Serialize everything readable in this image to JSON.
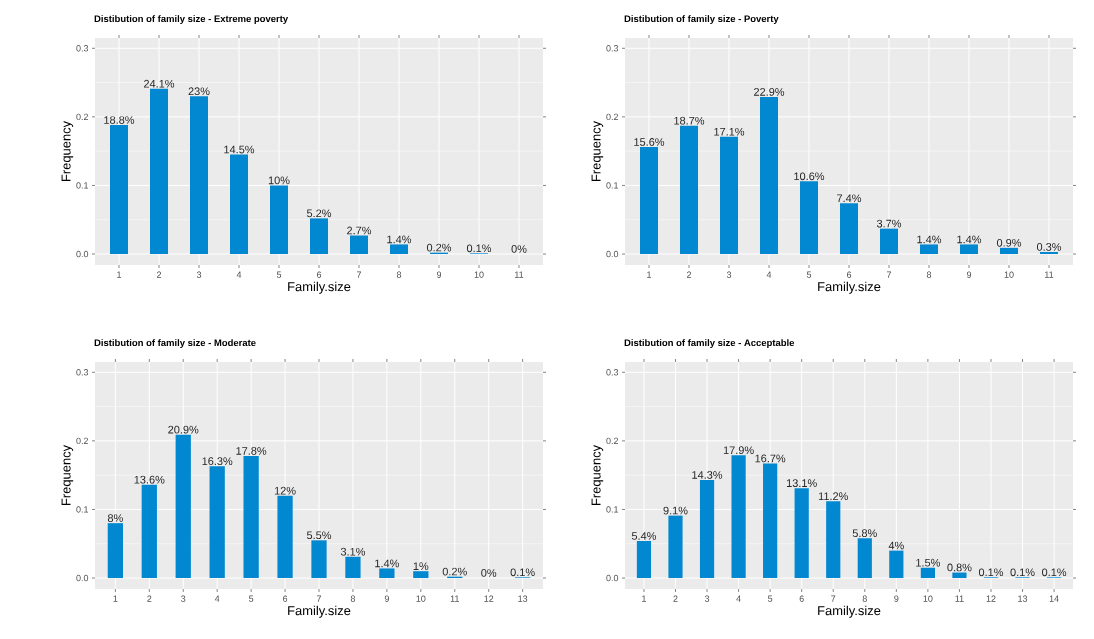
{
  "chart_data": [
    {
      "type": "bar",
      "title": "Distibution of family size - Extreme poverty",
      "xlabel": "Family.size",
      "ylabel": "Frequency",
      "categories": [
        "1",
        "2",
        "3",
        "4",
        "5",
        "6",
        "7",
        "8",
        "9",
        "10",
        "11"
      ],
      "values": [
        0.188,
        0.241,
        0.23,
        0.145,
        0.1,
        0.052,
        0.027,
        0.014,
        0.002,
        0.001,
        0
      ],
      "value_labels": [
        "18.8%",
        "24.1%",
        "23%",
        "14.5%",
        "10%",
        "5.2%",
        "2.7%",
        "1.4%",
        "0.2%",
        "0.1%",
        "0%"
      ],
      "color": "#0288d1",
      "ylim": [
        -0.016,
        0.315
      ],
      "yticks": [
        {
          "value": 0,
          "label": "0.0"
        },
        {
          "value": 0.1,
          "label": "0.1"
        },
        {
          "value": 0.2,
          "label": "0.2"
        },
        {
          "value": 0.3,
          "label": "0.3"
        }
      ],
      "grid": true
    },
    {
      "type": "bar",
      "title": "Distibution of family size - Poverty",
      "xlabel": "Family.size",
      "ylabel": "Frequency",
      "categories": [
        "1",
        "2",
        "3",
        "4",
        "5",
        "6",
        "7",
        "8",
        "9",
        "10",
        "11"
      ],
      "values": [
        0.156,
        0.187,
        0.171,
        0.229,
        0.106,
        0.074,
        0.037,
        0.014,
        0.014,
        0.009,
        0.003
      ],
      "value_labels": [
        "15.6%",
        "18.7%",
        "17.1%",
        "22.9%",
        "10.6%",
        "7.4%",
        "3.7%",
        "1.4%",
        "1.4%",
        "0.9%",
        "0.3%"
      ],
      "color": "#0288d1",
      "ylim": [
        -0.016,
        0.315
      ],
      "yticks": [
        {
          "value": 0,
          "label": "0.0"
        },
        {
          "value": 0.1,
          "label": "0.1"
        },
        {
          "value": 0.2,
          "label": "0.2"
        },
        {
          "value": 0.3,
          "label": "0.3"
        }
      ],
      "grid": true
    },
    {
      "type": "bar",
      "title": "Distibution of family size - Moderate",
      "xlabel": "Family.size",
      "ylabel": "Frequency",
      "categories": [
        "1",
        "2",
        "3",
        "4",
        "5",
        "6",
        "7",
        "8",
        "9",
        "10",
        "11",
        "12",
        "13"
      ],
      "values": [
        0.08,
        0.136,
        0.209,
        0.163,
        0.178,
        0.12,
        0.055,
        0.031,
        0.014,
        0.01,
        0.002,
        0,
        0.001
      ],
      "value_labels": [
        "8%",
        "13.6%",
        "20.9%",
        "16.3%",
        "17.8%",
        "12%",
        "5.5%",
        "3.1%",
        "1.4%",
        "1%",
        "0.2%",
        "0%",
        "0.1%"
      ],
      "color": "#0288d1",
      "ylim": [
        -0.016,
        0.315
      ],
      "yticks": [
        {
          "value": 0,
          "label": "0.0"
        },
        {
          "value": 0.1,
          "label": "0.1"
        },
        {
          "value": 0.2,
          "label": "0.2"
        },
        {
          "value": 0.3,
          "label": "0.3"
        }
      ],
      "grid": true
    },
    {
      "type": "bar",
      "title": "Distibution of family size - Acceptable",
      "xlabel": "Family.size",
      "ylabel": "Frequency",
      "categories": [
        "1",
        "2",
        "3",
        "4",
        "5",
        "6",
        "7",
        "8",
        "9",
        "10",
        "11",
        "12",
        "13",
        "14"
      ],
      "values": [
        0.054,
        0.091,
        0.143,
        0.179,
        0.167,
        0.131,
        0.112,
        0.058,
        0.04,
        0.015,
        0.008,
        0.001,
        0.001,
        0.001
      ],
      "value_labels": [
        "5.4%",
        "9.1%",
        "14.3%",
        "17.9%",
        "16.7%",
        "13.1%",
        "11.2%",
        "5.8%",
        "4%",
        "1.5%",
        "0.8%",
        "0.1%",
        "0.1%",
        "0.1%"
      ],
      "color": "#0288d1",
      "ylim": [
        -0.016,
        0.315
      ],
      "yticks": [
        {
          "value": 0,
          "label": "0.0"
        },
        {
          "value": 0.1,
          "label": "0.1"
        },
        {
          "value": 0.2,
          "label": "0.2"
        },
        {
          "value": 0.3,
          "label": "0.3"
        }
      ],
      "grid": true
    }
  ]
}
